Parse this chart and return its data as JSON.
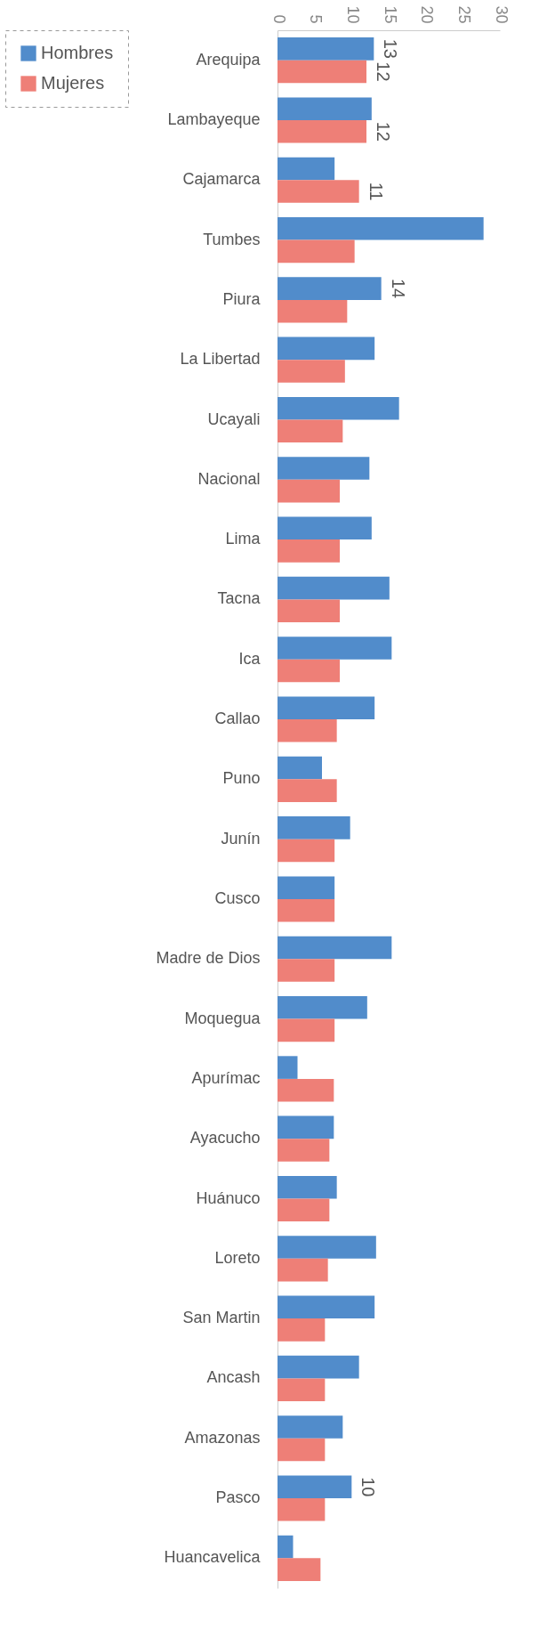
{
  "chart_data": {
    "type": "bar",
    "orientation": "horizontal",
    "categories": [
      "Arequipa",
      "Lambayeque",
      "Cajamarca",
      "Tumbes",
      "Piura",
      "La Libertad",
      "Ucayali",
      "Nacional",
      "Lima",
      "Tacna",
      "Ica",
      "Callao",
      "Puno",
      "Junín",
      "Cusco",
      "Madre de Dios",
      "Moquegua",
      "Apurímac",
      "Ayacucho",
      "Huánuco",
      "Loreto",
      "San Martin",
      "Ancash",
      "Amazonas",
      "Pasco",
      "Huancavelica"
    ],
    "series": [
      {
        "name": "Hombres",
        "color": "#518ccb",
        "values": [
          13,
          12.7,
          7.7,
          27.8,
          14,
          13.1,
          16.4,
          12.4,
          12.7,
          15.1,
          15.4,
          13.1,
          6.0,
          9.8,
          7.7,
          15.4,
          12.1,
          2.7,
          7.6,
          8.0,
          13.3,
          13.1,
          11.0,
          8.8,
          10,
          2.1
        ],
        "value_labels": [
          "13",
          null,
          null,
          null,
          "14",
          null,
          null,
          null,
          null,
          null,
          null,
          null,
          null,
          null,
          null,
          null,
          null,
          null,
          null,
          null,
          null,
          null,
          null,
          null,
          "10",
          null
        ]
      },
      {
        "name": "Mujeres",
        "color": "#ee7f77",
        "values": [
          12,
          12,
          11,
          10.4,
          9.4,
          9.1,
          8.8,
          8.4,
          8.4,
          8.4,
          8.4,
          8.0,
          8.0,
          7.7,
          7.7,
          7.7,
          7.7,
          7.6,
          7.0,
          7.0,
          6.8,
          6.4,
          6.4,
          6.4,
          6.4,
          5.8
        ],
        "value_labels": [
          "12",
          "12",
          "11",
          null,
          null,
          null,
          null,
          null,
          null,
          null,
          null,
          null,
          null,
          null,
          null,
          null,
          null,
          null,
          null,
          null,
          null,
          null,
          null,
          null,
          null,
          null
        ]
      }
    ],
    "xlim": [
      0,
      30
    ],
    "xticks": [
      0,
      5,
      10,
      15,
      20,
      25,
      30
    ],
    "grid": false,
    "legend": "left"
  }
}
